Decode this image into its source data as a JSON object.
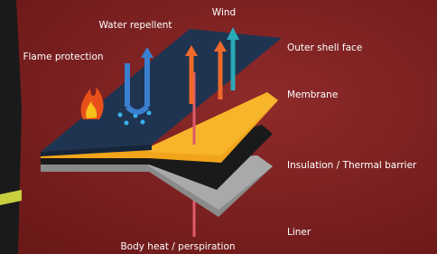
{
  "labels": {
    "water": "Water repellent",
    "wind": "Wind",
    "flame": "Flame protection",
    "outer": "Outer shell face",
    "membrane": "Membrane",
    "insulation": "Insulation / Thermal barrier",
    "liner": "Liner",
    "body": "Body heat / perspiration"
  }
}
